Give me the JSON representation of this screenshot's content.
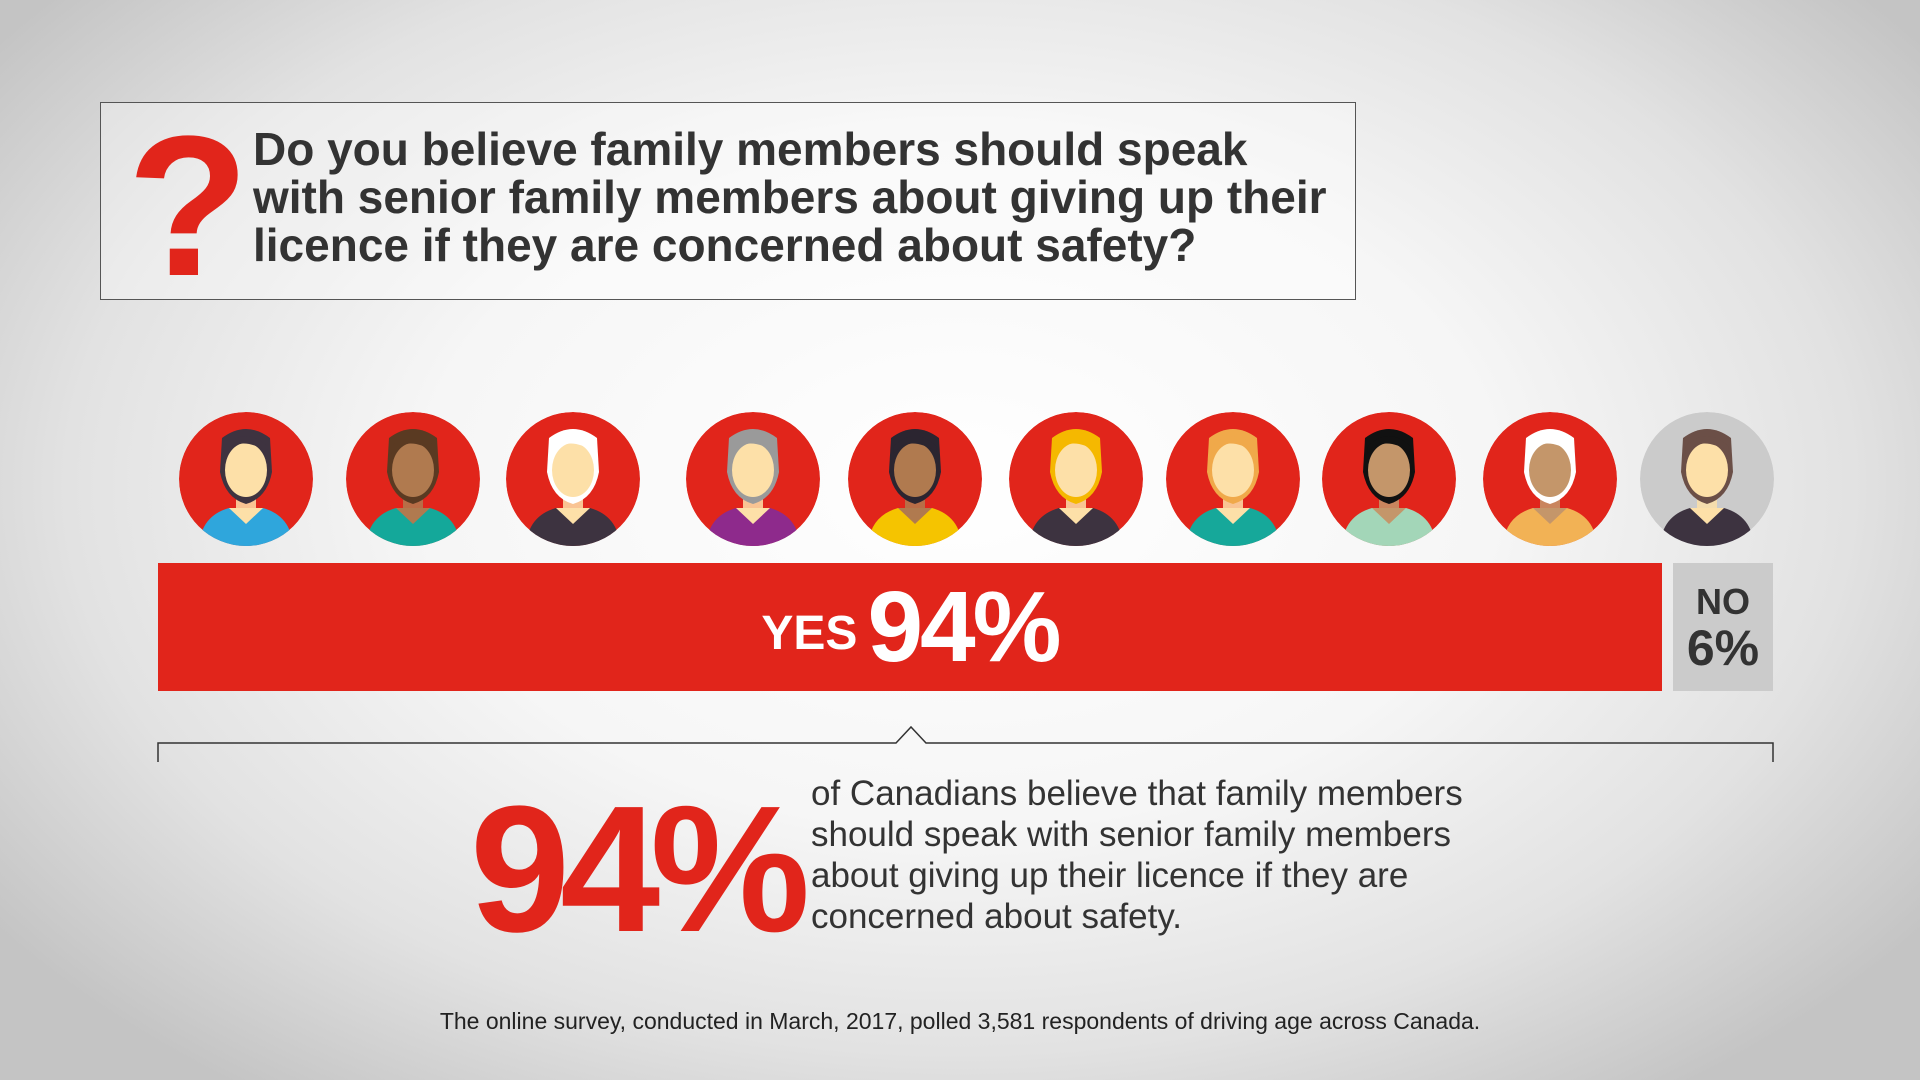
{
  "question": {
    "mark": "?",
    "text": "Do you believe family members should speak with senior family members about giving up their licence if they are concerned about safety?"
  },
  "avatars": [
    {
      "name": "woman-dark-hair",
      "bg": "#e1251b",
      "skin": "#fde0a8",
      "hair": "#3e3340",
      "shirt": "#2fa6dc"
    },
    {
      "name": "man-glasses",
      "bg": "#e1251b",
      "skin": "#b07a4f",
      "hair": "#5a3a22",
      "shirt": "#14a89a"
    },
    {
      "name": "senior-woman",
      "bg": "#e1251b",
      "skin": "#fde0a8",
      "hair": "#ffffff",
      "shirt": "#3d3340"
    },
    {
      "name": "senior-man-beard",
      "bg": "#e1251b",
      "skin": "#fde0a8",
      "hair": "#9a9a9a",
      "shirt": "#8e2a8c"
    },
    {
      "name": "woman-curly-glasses",
      "bg": "#e1251b",
      "skin": "#b07a4f",
      "hair": "#2b2530",
      "shirt": "#f5c400"
    },
    {
      "name": "young-man-blond",
      "bg": "#e1251b",
      "skin": "#fde0a8",
      "hair": "#f5b800",
      "shirt": "#3d3340"
    },
    {
      "name": "woman-ginger",
      "bg": "#e1251b",
      "skin": "#fde0a8",
      "hair": "#f0a94a",
      "shirt": "#16a89a"
    },
    {
      "name": "man-black-hair",
      "bg": "#e1251b",
      "skin": "#c4966a",
      "hair": "#111111",
      "shirt": "#a3d6b8"
    },
    {
      "name": "senior-man-glasses",
      "bg": "#e1251b",
      "skin": "#c4966a",
      "hair": "#ffffff",
      "shirt": "#f2b255"
    },
    {
      "name": "girl-pigtails",
      "bg": "#cbcbcb",
      "skin": "#fde0a8",
      "hair": "#6b4f47",
      "shirt": "#3d3340"
    }
  ],
  "results": {
    "yes_label": "YES",
    "yes_value": "94%",
    "yes_percent": 94,
    "no_label": "NO",
    "no_value": "6%",
    "no_percent": 6
  },
  "summary": {
    "big_value": "94%",
    "text": "of Canadians believe that family members should speak with senior family members about giving up their licence if they are concerned about safety."
  },
  "footnote": "The online survey, conducted in March, 2017, polled 3,581 respondents of driving age across Canada.",
  "colors": {
    "accent": "#e1251b",
    "no": "#cbcbcb",
    "text": "#333333"
  }
}
